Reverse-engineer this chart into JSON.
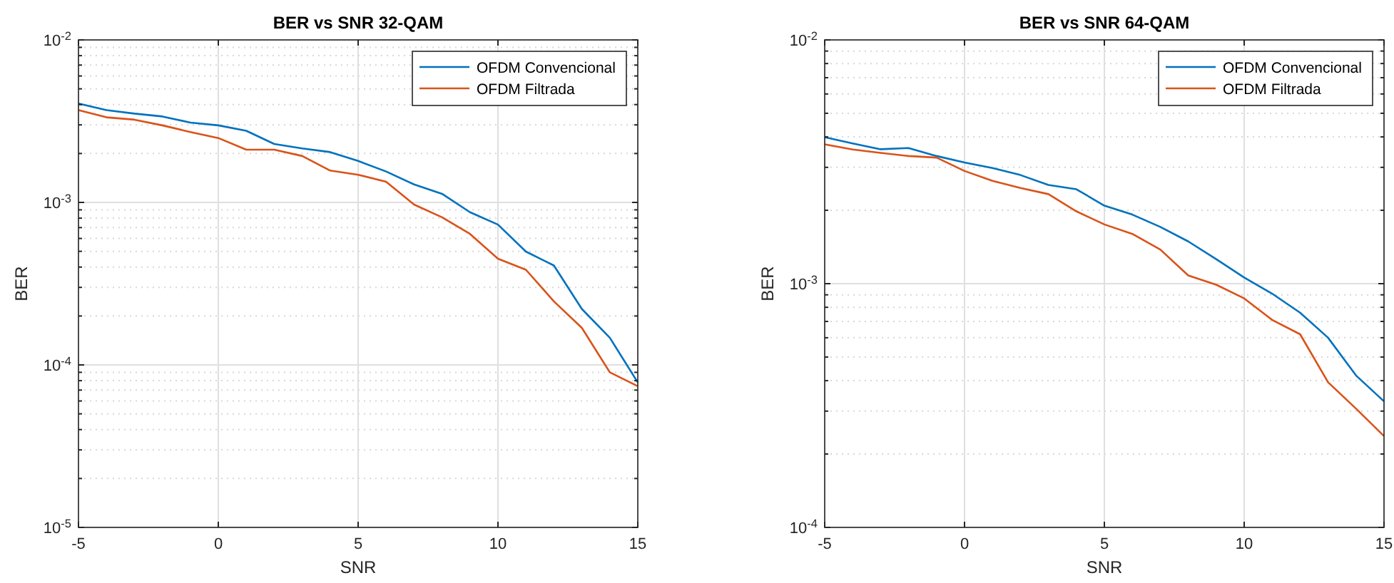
{
  "chart_data": [
    {
      "type": "line",
      "title": "BER vs SNR 32-QAM",
      "xlabel": "SNR",
      "ylabel": "BER",
      "x": [
        -5,
        -4,
        -3,
        -2,
        -1,
        0,
        1,
        2,
        3,
        4,
        5,
        6,
        7,
        8,
        9,
        10,
        11,
        12,
        13,
        14,
        15
      ],
      "xlim": [
        -5,
        15
      ],
      "xticks": [
        -5,
        0,
        5,
        10,
        15
      ],
      "ylim": [
        1e-05,
        0.01
      ],
      "yticks": [
        {
          "value": 1e-05,
          "label": "10$^{-5}$"
        },
        {
          "value": 0.0001,
          "label": "10$^{-4}$"
        },
        {
          "value": 0.001,
          "label": "10$^{-3}$"
        },
        {
          "value": 0.01,
          "label": "10$^{-2}$"
        }
      ],
      "log": "y",
      "grid": true,
      "legend": "top right",
      "series": [
        {
          "name": "OFDM Convencional",
          "color": "#0072bd",
          "values": [
            0.00406,
            0.0037,
            0.00352,
            0.00338,
            0.0031,
            0.00298,
            0.00276,
            0.00229,
            0.00215,
            0.00204,
            0.0018,
            0.00155,
            0.00129,
            0.00113,
            0.00087,
            0.00073,
            0.000498,
            0.000409,
            0.000221,
            0.000147,
            7.8e-05
          ]
        },
        {
          "name": "OFDM Filtrada",
          "color": "#d95319",
          "values": [
            0.0037,
            0.00334,
            0.00323,
            0.00298,
            0.00271,
            0.00249,
            0.00211,
            0.00211,
            0.00193,
            0.00157,
            0.00148,
            0.00134,
            0.00097,
            0.00081,
            0.00064,
            0.00045,
            0.000385,
            0.000246,
            0.000169,
            9e-05,
            7.4e-05
          ]
        }
      ]
    },
    {
      "type": "line",
      "title": "BER vs SNR 64-QAM",
      "xlabel": "SNR",
      "ylabel": "BER",
      "x": [
        -5,
        -4,
        -3,
        -2,
        -1,
        0,
        1,
        2,
        3,
        4,
        5,
        6,
        7,
        8,
        9,
        10,
        11,
        12,
        13,
        14,
        15
      ],
      "xlim": [
        -5,
        15
      ],
      "xticks": [
        -5,
        0,
        5,
        10,
        15
      ],
      "ylim": [
        0.0001,
        0.01
      ],
      "yticks": [
        {
          "value": 0.0001,
          "label": "10$^{-4}$"
        },
        {
          "value": 0.001,
          "label": "10$^{-3}$"
        },
        {
          "value": 0.01,
          "label": "10$^{-2}$"
        }
      ],
      "log": "y",
      "grid": true,
      "legend": "top right",
      "series": [
        {
          "name": "OFDM Convencional",
          "color": "#0072bd",
          "values": [
            0.00399,
            0.00376,
            0.00356,
            0.0036,
            0.00334,
            0.00314,
            0.00298,
            0.00279,
            0.00254,
            0.00244,
            0.00209,
            0.00192,
            0.00171,
            0.00149,
            0.00126,
            0.00106,
            0.00091,
            0.00076,
            0.0006,
            0.00042,
            0.000329
          ]
        },
        {
          "name": "OFDM Filtrada",
          "color": "#d95319",
          "values": [
            0.00373,
            0.00355,
            0.00344,
            0.00334,
            0.00329,
            0.0029,
            0.00264,
            0.00247,
            0.00233,
            0.00198,
            0.00175,
            0.0016,
            0.00138,
            0.00108,
            0.00099,
            0.00087,
            0.00071,
            0.00062,
            0.000394,
            0.000307,
            0.000237
          ]
        }
      ]
    }
  ]
}
